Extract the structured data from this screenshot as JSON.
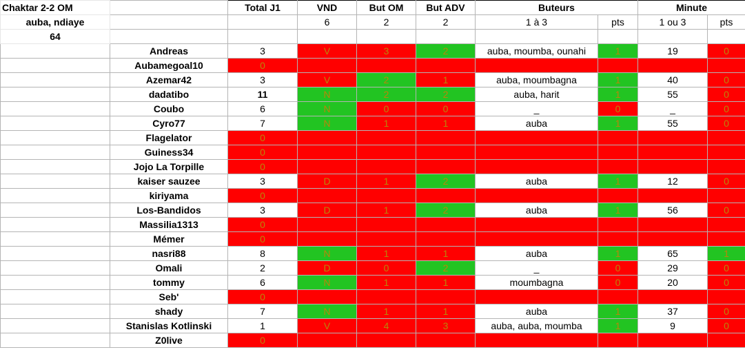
{
  "info": {
    "match": "Chaktar 2-2 OM",
    "scorers": "auba, ndiaye",
    "minute": "64"
  },
  "headers": {
    "total": "Total J1",
    "vnd": "VND",
    "but_om": "But OM",
    "but_adv": "But ADV",
    "buteurs": "Buteurs",
    "minute": "Minute"
  },
  "subheaders": {
    "vnd_pts": "6",
    "but_om_pts": "2",
    "but_adv_pts": "2",
    "buteurs_range": "1 à 3",
    "buteurs_pts": "pts",
    "minute_range": "1 ou 3",
    "minute_pts": "pts"
  },
  "colors": {
    "green": "#22c422",
    "red": "#ff0000",
    "grey_text": "#b8860b"
  },
  "players": [
    {
      "name": "Andreas",
      "total": "3",
      "vnd": "V",
      "vnd_c": "r",
      "om": "3",
      "om_c": "r",
      "adv": "2",
      "adv_c": "g",
      "buteurs": "auba, moumba, ounahi",
      "bpts": "1",
      "bpts_c": "g",
      "minute": "19",
      "mpts": "0",
      "mpts_c": "r"
    },
    {
      "name": "Aubamegoal10",
      "total": "0",
      "absent": true
    },
    {
      "name": "Azemar42",
      "total": "3",
      "vnd": "V",
      "vnd_c": "r",
      "om": "2",
      "om_c": "g",
      "adv": "1",
      "adv_c": "r",
      "buteurs": "auba, moumbagna",
      "bpts": "1",
      "bpts_c": "g",
      "minute": "40",
      "mpts": "0",
      "mpts_c": "r"
    },
    {
      "name": "dadatibo",
      "total": "11",
      "total_bold": true,
      "vnd": "N",
      "vnd_c": "g",
      "om": "2",
      "om_c": "g",
      "adv": "2",
      "adv_c": "g",
      "buteurs": "auba, harit",
      "bpts": "1",
      "bpts_c": "g",
      "minute": "55",
      "mpts": "0",
      "mpts_c": "r"
    },
    {
      "name": "Coubo",
      "total": "6",
      "vnd": "N",
      "vnd_c": "g",
      "om": "0",
      "om_c": "r",
      "adv": "0",
      "adv_c": "r",
      "buteurs": "_",
      "bpts": "0",
      "bpts_c": "r",
      "minute": "_",
      "mpts": "0",
      "mpts_c": "r"
    },
    {
      "name": "Cyro77",
      "total": "7",
      "vnd": "N",
      "vnd_c": "g",
      "om": "1",
      "om_c": "r",
      "adv": "1",
      "adv_c": "r",
      "buteurs": "auba",
      "bpts": "1",
      "bpts_c": "g",
      "minute": "55",
      "mpts": "0",
      "mpts_c": "r"
    },
    {
      "name": "Flagelator",
      "total": "0",
      "absent": true
    },
    {
      "name": "Guiness34",
      "total": "0",
      "absent": true
    },
    {
      "name": "Jojo La Torpille",
      "total": "0",
      "absent": true
    },
    {
      "name": "kaiser sauzee",
      "total": "3",
      "vnd": "D",
      "vnd_c": "r",
      "om": "1",
      "om_c": "r",
      "adv": "2",
      "adv_c": "g",
      "buteurs": "auba",
      "bpts": "1",
      "bpts_c": "g",
      "minute": "12",
      "mpts": "0",
      "mpts_c": "r"
    },
    {
      "name": "kiriyama",
      "total": "0",
      "absent": true
    },
    {
      "name": "Los-Bandidos",
      "total": "3",
      "vnd": "D",
      "vnd_c": "r",
      "om": "1",
      "om_c": "r",
      "adv": "2",
      "adv_c": "g",
      "buteurs": "auba",
      "bpts": "1",
      "bpts_c": "g",
      "minute": "56",
      "mpts": "0",
      "mpts_c": "r"
    },
    {
      "name": "Massilia1313",
      "total": "0",
      "absent": true
    },
    {
      "name": "Mémer",
      "total": "0",
      "absent": true
    },
    {
      "name": "nasri88",
      "total": "8",
      "vnd": "N",
      "vnd_c": "g",
      "om": "1",
      "om_c": "r",
      "adv": "1",
      "adv_c": "r",
      "buteurs": "auba",
      "bpts": "1",
      "bpts_c": "g",
      "minute": "65",
      "mpts": "1",
      "mpts_c": "g"
    },
    {
      "name": "Omali",
      "total": "2",
      "vnd": "D",
      "vnd_c": "r",
      "om": "0",
      "om_c": "r",
      "adv": "2",
      "adv_c": "g",
      "buteurs": "_",
      "bpts": "0",
      "bpts_c": "r",
      "minute": "29",
      "mpts": "0",
      "mpts_c": "r"
    },
    {
      "name": "tommy",
      "total": "6",
      "vnd": "N",
      "vnd_c": "g",
      "om": "1",
      "om_c": "r",
      "adv": "1",
      "adv_c": "r",
      "buteurs": "moumbagna",
      "bpts": "0",
      "bpts_c": "r",
      "minute": "20",
      "mpts": "0",
      "mpts_c": "r"
    },
    {
      "name": "Seb'",
      "total": "0",
      "absent": true
    },
    {
      "name": "shady",
      "total": "7",
      "vnd": "N",
      "vnd_c": "g",
      "om": "1",
      "om_c": "r",
      "adv": "1",
      "adv_c": "r",
      "buteurs": "auba",
      "bpts": "1",
      "bpts_c": "g",
      "minute": "37",
      "mpts": "0",
      "mpts_c": "r"
    },
    {
      "name": "Stanislas Kotlinski",
      "total": "1",
      "vnd": "V",
      "vnd_c": "r",
      "om": "4",
      "om_c": "r",
      "adv": "3",
      "adv_c": "r",
      "buteurs": "auba, auba, moumba",
      "bpts": "1",
      "bpts_c": "g",
      "minute": "9",
      "mpts": "0",
      "mpts_c": "r"
    },
    {
      "name": "Z0live",
      "total": "0",
      "absent": true
    }
  ]
}
